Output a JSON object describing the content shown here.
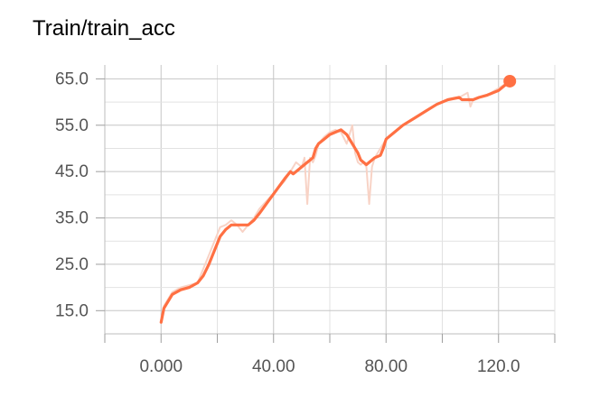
{
  "chart_data": {
    "type": "line",
    "title": "Train/train_acc",
    "xlabel": "",
    "ylabel": "",
    "xlim": [
      -20,
      140
    ],
    "ylim": [
      10,
      68
    ],
    "x_ticks": [
      0,
      40,
      80,
      120
    ],
    "x_tick_labels": [
      "0.000",
      "40.00",
      "80.00",
      "120.0"
    ],
    "y_ticks": [
      15,
      25,
      35,
      45,
      55,
      65
    ],
    "y_tick_labels": [
      "15.0",
      "25.0",
      "35.0",
      "45.0",
      "55.0",
      "65.0"
    ],
    "grid": true,
    "series": [
      {
        "role": "raw",
        "color": "#f8d3c6",
        "x": [
          0,
          1,
          2,
          4,
          7,
          10,
          13,
          15,
          17,
          19,
          21,
          23,
          25,
          27,
          29,
          31,
          33,
          35,
          38,
          41,
          44,
          46,
          48,
          50,
          51,
          52,
          53,
          54,
          55,
          56,
          58,
          60,
          62,
          64,
          66,
          68,
          69,
          70,
          71,
          72,
          73,
          74,
          75,
          76,
          78,
          80,
          83,
          86,
          90,
          94,
          98,
          102,
          106,
          109,
          110,
          111,
          113,
          116,
          120,
          124
        ],
        "y": [
          13,
          16,
          17,
          19,
          20,
          20.5,
          21,
          24,
          27,
          30,
          33,
          33.5,
          34.5,
          33.5,
          32,
          33.5,
          35,
          37,
          39,
          41,
          43,
          45,
          47,
          46,
          48,
          38,
          48,
          47,
          48.5,
          51,
          52.5,
          53.5,
          54,
          53.5,
          51,
          55,
          49,
          47,
          46.5,
          47,
          46,
          38,
          46,
          48,
          50,
          52,
          53.5,
          55,
          56.5,
          58,
          59.5,
          60.5,
          61,
          62,
          59,
          60.5,
          61,
          61.5,
          63,
          64.5
        ]
      },
      {
        "role": "smoothed",
        "color": "#ff7043",
        "x": [
          0,
          1,
          2,
          4,
          7,
          10,
          13,
          15,
          17,
          19,
          21,
          23,
          25,
          27,
          29,
          31,
          33,
          35,
          38,
          41,
          44,
          46,
          47,
          48,
          50,
          52,
          54,
          55,
          56,
          58,
          60,
          62,
          64,
          66,
          68,
          70,
          71,
          72,
          73,
          74,
          75,
          76,
          78,
          79,
          80,
          83,
          86,
          90,
          94,
          98,
          102,
          106,
          107,
          109,
          111,
          113,
          116,
          120,
          124
        ],
        "y": [
          12.5,
          15.5,
          16.5,
          18.5,
          19.5,
          20,
          21,
          22.5,
          25,
          28,
          31,
          32.5,
          33.5,
          33.5,
          33.5,
          33.5,
          34.5,
          36,
          38.5,
          41,
          43.5,
          45,
          44.5,
          45,
          46,
          47,
          48,
          50,
          51,
          52,
          53,
          53.5,
          54,
          53,
          51,
          49,
          47.5,
          47,
          46.5,
          47,
          47.5,
          48,
          48.5,
          50,
          52,
          53.5,
          55,
          56.5,
          58,
          59.5,
          60.5,
          61,
          60.5,
          60.5,
          60.5,
          61,
          61.5,
          62.5,
          64.5
        ]
      }
    ]
  }
}
